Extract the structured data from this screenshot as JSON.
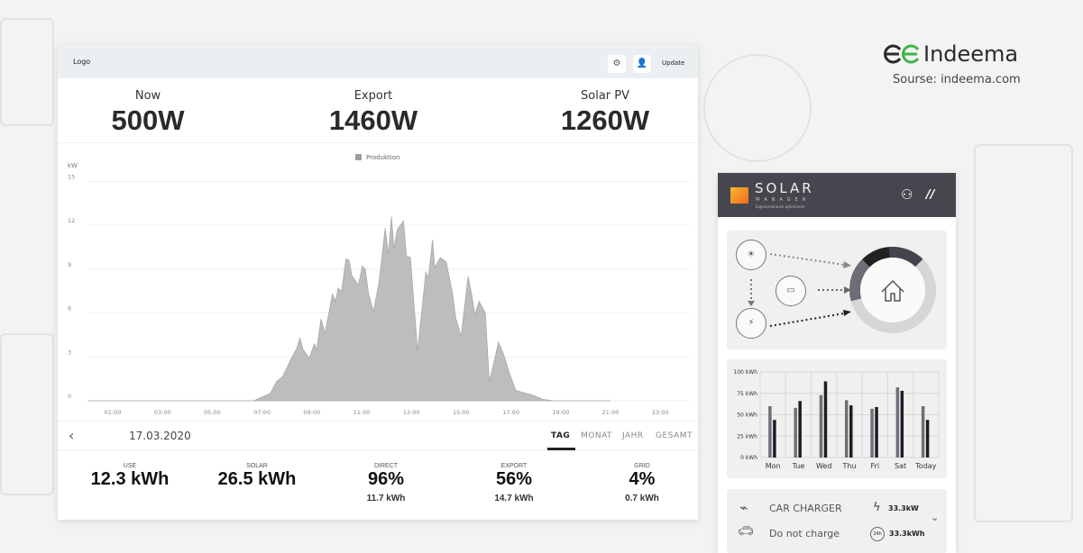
{
  "branding": {
    "name": "Indeema",
    "source": "Sourse: indeema.com",
    "accent": "#3cb54a"
  },
  "dashboard": {
    "header": {
      "logo": "Logo",
      "settings_icon": "gear-icon",
      "user_icon": "user-icon",
      "update_label": "Update"
    },
    "stats": [
      {
        "label": "Now",
        "value": "500W"
      },
      {
        "label": "Export",
        "value": "1460W"
      },
      {
        "label": "Solar PV",
        "value": "1260W"
      }
    ],
    "date": "17.03.2020",
    "tabs": [
      {
        "label": "TAG",
        "active": true
      },
      {
        "label": "MONAT",
        "active": false
      },
      {
        "label": "JAHR",
        "active": false
      },
      {
        "label": "GESAMT",
        "active": false
      }
    ],
    "summary": [
      {
        "label": "USE",
        "value": "12.3 kWh",
        "sub": ""
      },
      {
        "label": "SOLAR",
        "value": "26.5 kWh",
        "sub": ""
      },
      {
        "label": "DIRECT",
        "value": "96%",
        "sub": "11.7 kWh"
      },
      {
        "label": "EXPORT",
        "value": "56%",
        "sub": "14.7 kWh"
      },
      {
        "label": "GRID",
        "value": "4%",
        "sub": "0.7 kWh"
      }
    ]
  },
  "chart_data": [
    {
      "type": "area",
      "ylabel": "kW",
      "legend": [
        "Produktion"
      ],
      "legend_position": "top",
      "grid": true,
      "ylim": [
        0,
        15
      ],
      "yticks": [
        "0",
        "3",
        "6",
        "9",
        "12",
        "15"
      ],
      "xticks": [
        "01:00",
        "03:00",
        "05:00",
        "07:00",
        "09:00",
        "11:00",
        "13:00",
        "15:00",
        "17:00",
        "19:00",
        "21:00",
        "23:00"
      ],
      "color": "#bdbdbd",
      "series": [
        {
          "name": "Produktion",
          "points": [
            [
              0,
              0
            ],
            [
              6.67,
              0
            ],
            [
              7.33,
              0.5
            ],
            [
              7.58,
              1.3
            ],
            [
              7.83,
              1.65
            ],
            [
              8.15,
              2.8
            ],
            [
              8.4,
              3.6
            ],
            [
              8.52,
              4.3
            ],
            [
              8.65,
              3.5
            ],
            [
              8.9,
              2.9
            ],
            [
              9.1,
              3.9
            ],
            [
              9.2,
              3.5
            ],
            [
              9.37,
              5.6
            ],
            [
              9.53,
              4.6
            ],
            [
              9.83,
              7.3
            ],
            [
              9.96,
              6.8
            ],
            [
              10.05,
              7.7
            ],
            [
              10.2,
              7.5
            ],
            [
              10.37,
              9.7
            ],
            [
              10.5,
              9.6
            ],
            [
              10.6,
              8.6
            ],
            [
              10.87,
              7.9
            ],
            [
              11.03,
              9.2
            ],
            [
              11.15,
              9.0
            ],
            [
              11.28,
              7.3
            ],
            [
              11.48,
              6.1
            ],
            [
              11.7,
              8.1
            ],
            [
              11.95,
              11.8
            ],
            [
              12.08,
              10.0
            ],
            [
              12.2,
              12.6
            ],
            [
              12.3,
              10.4
            ],
            [
              12.43,
              11.7
            ],
            [
              12.68,
              12.3
            ],
            [
              12.8,
              9.9
            ],
            [
              12.96,
              9.8
            ],
            [
              13.25,
              3.4
            ],
            [
              13.58,
              8.8
            ],
            [
              13.68,
              8.4
            ],
            [
              13.85,
              11.0
            ],
            [
              13.94,
              9.1
            ],
            [
              14.16,
              9.8
            ],
            [
              14.4,
              9.5
            ],
            [
              14.65,
              7.4
            ],
            [
              14.78,
              5.7
            ],
            [
              15.0,
              4.4
            ],
            [
              15.28,
              8.5
            ],
            [
              15.42,
              7.3
            ],
            [
              15.55,
              5.9
            ],
            [
              15.72,
              6.8
            ],
            [
              15.97,
              6.0
            ],
            [
              16.13,
              1.3
            ],
            [
              16.3,
              2.5
            ],
            [
              16.5,
              4.0
            ],
            [
              16.7,
              3.2
            ],
            [
              16.95,
              1.85
            ],
            [
              17.2,
              0.7
            ],
            [
              17.86,
              0.4
            ],
            [
              18.27,
              0.1
            ],
            [
              18.68,
              0
            ],
            [
              21,
              0
            ]
          ]
        }
      ]
    },
    {
      "type": "bar",
      "categories": [
        "Mon",
        "Tue",
        "Wed",
        "Thu",
        "Fri",
        "Sat",
        "Today"
      ],
      "yticks": [
        "0 kWh",
        "25 kWh",
        "50 kWh",
        "75 kWh",
        "100 kWh"
      ],
      "ylim": [
        0,
        100
      ],
      "grid": true,
      "series": [
        {
          "values": [
            60,
            58,
            73,
            67,
            57,
            82,
            60
          ],
          "color": "#6e6f78"
        },
        {
          "values": [
            44,
            66,
            89,
            61,
            59,
            78,
            44
          ],
          "color": "#1e1e22"
        }
      ]
    }
  ],
  "app": {
    "brand": "SOLAR",
    "brand_sub": "MANAGER",
    "tagline": "Eigenverbrauch optimieren",
    "car_charger": {
      "title": "CAR CHARGER",
      "status": "Do not charge",
      "power": "33.3kW",
      "energy": "33.3kWh",
      "badge": "24h"
    }
  }
}
